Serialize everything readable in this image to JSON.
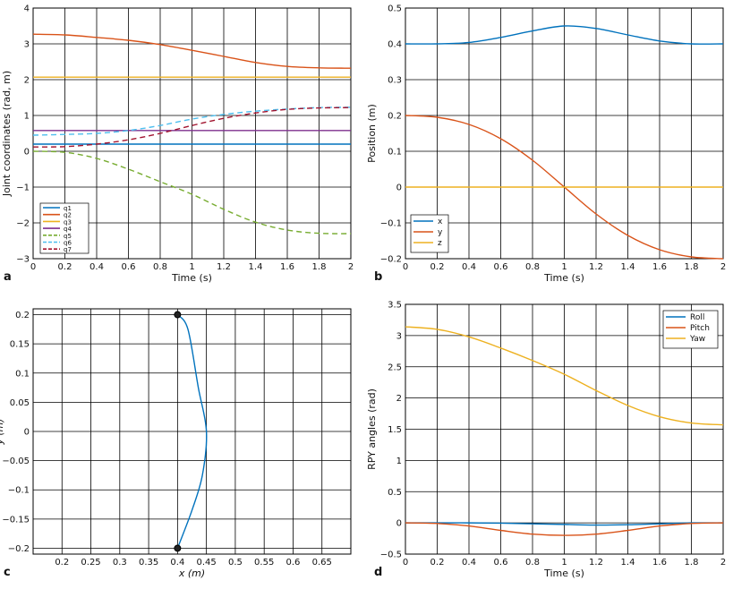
{
  "chart_data": [
    {
      "panel": "a",
      "type": "line",
      "xlabel": "Time (s)",
      "ylabel": "Joint coordinates (rad, m)",
      "xlim": [
        0,
        2
      ],
      "ylim": [
        -3,
        4
      ],
      "xticks": [
        "0",
        "0.2",
        "0.4",
        "0.6",
        "0.8",
        "1",
        "1.2",
        "1.4",
        "1.6",
        "1.8",
        "2"
      ],
      "yticks": [
        "−3",
        "−2",
        "−1",
        "0",
        "1",
        "2",
        "3",
        "4"
      ],
      "legend": "bottom-left",
      "series": [
        {
          "name": "q1",
          "color": "#0072BD",
          "dash": "solid",
          "x": [
            0,
            2
          ],
          "y": [
            0.2,
            0.2
          ]
        },
        {
          "name": "q2",
          "color": "#D95319",
          "dash": "solid",
          "x": [
            0,
            0.2,
            0.4,
            0.6,
            0.8,
            1,
            1.2,
            1.4,
            1.6,
            1.8,
            2
          ],
          "y": [
            3.27,
            3.25,
            3.18,
            3.1,
            2.98,
            2.82,
            2.65,
            2.48,
            2.37,
            2.33,
            2.32
          ]
        },
        {
          "name": "q3",
          "color": "#EDB120",
          "dash": "solid",
          "x": [
            0,
            2
          ],
          "y": [
            2.07,
            2.07
          ]
        },
        {
          "name": "q4",
          "color": "#7E2F8E",
          "dash": "solid",
          "x": [
            0,
            2
          ],
          "y": [
            0.58,
            0.58
          ]
        },
        {
          "name": "q5",
          "color": "#77AC30",
          "dash": "dashed",
          "x": [
            0,
            0.2,
            0.4,
            0.6,
            0.8,
            1,
            1.2,
            1.4,
            1.6,
            1.8,
            2
          ],
          "y": [
            0,
            -0.03,
            -0.2,
            -0.5,
            -0.85,
            -1.2,
            -1.62,
            -1.98,
            -2.2,
            -2.29,
            -2.3
          ]
        },
        {
          "name": "q6",
          "color": "#4DBEEE",
          "dash": "dashed",
          "x": [
            0,
            0.2,
            0.4,
            0.6,
            0.8,
            1,
            1.2,
            1.4,
            1.6,
            1.8,
            2
          ],
          "y": [
            0.45,
            0.47,
            0.5,
            0.58,
            0.72,
            0.9,
            1.03,
            1.12,
            1.18,
            1.22,
            1.23
          ]
        },
        {
          "name": "q7",
          "color": "#A2142F",
          "dash": "dashed",
          "x": [
            0,
            0.2,
            0.4,
            0.6,
            0.8,
            1,
            1.2,
            1.4,
            1.6,
            1.8,
            2
          ],
          "y": [
            0.12,
            0.13,
            0.2,
            0.32,
            0.5,
            0.72,
            0.92,
            1.07,
            1.17,
            1.21,
            1.22
          ]
        }
      ]
    },
    {
      "panel": "b",
      "type": "line",
      "xlabel": "Time (s)",
      "ylabel": "Position (m)",
      "xlim": [
        0,
        2
      ],
      "ylim": [
        -0.2,
        0.5
      ],
      "xticks": [
        "0",
        "0.2",
        "0.4",
        "0.6",
        "0.8",
        "1",
        "1.2",
        "1.4",
        "1.6",
        "1.8",
        "2"
      ],
      "yticks": [
        "−0.2",
        "−0.1",
        "0",
        "0.1",
        "0.2",
        "0.3",
        "0.4",
        "0.5"
      ],
      "legend": "bottom-left",
      "series": [
        {
          "name": "x",
          "color": "#0072BD",
          "x": [
            0,
            0.2,
            0.4,
            0.6,
            0.8,
            1,
            1.2,
            1.4,
            1.6,
            1.8,
            2
          ],
          "y": [
            0.4,
            0.4,
            0.404,
            0.418,
            0.436,
            0.45,
            0.443,
            0.425,
            0.408,
            0.4,
            0.4
          ]
        },
        {
          "name": "y",
          "color": "#D95319",
          "x": [
            0,
            0.2,
            0.4,
            0.6,
            0.8,
            1,
            1.2,
            1.4,
            1.6,
            1.8,
            2
          ],
          "y": [
            0.2,
            0.195,
            0.175,
            0.135,
            0.075,
            0,
            -0.075,
            -0.135,
            -0.175,
            -0.195,
            -0.2
          ]
        },
        {
          "name": "z",
          "color": "#EDB120",
          "x": [
            0,
            2
          ],
          "y": [
            0,
            0
          ]
        }
      ]
    },
    {
      "panel": "c",
      "type": "line",
      "xlabel": "x (m)",
      "ylabel": "y (m)",
      "xlim": [
        0.15,
        0.7
      ],
      "ylim": [
        -0.21,
        0.21
      ],
      "xticks": [
        "0.2",
        "0.25",
        "0.3",
        "0.35",
        "0.4",
        "0.45",
        "0.5",
        "0.55",
        "0.6",
        "0.65"
      ],
      "yticks": [
        "−0.2",
        "−0.15",
        "−0.1",
        "−0.05",
        "0",
        "0.05",
        "0.1",
        "0.15",
        "0.2"
      ],
      "series": [
        {
          "name": "path",
          "color": "#0072BD",
          "x": [
            0.4,
            0.418,
            0.436,
            0.45,
            0.443,
            0.425,
            0.4
          ],
          "y": [
            0.2,
            0.175,
            0.075,
            0,
            -0.075,
            -0.135,
            -0.2
          ]
        }
      ],
      "markers": [
        {
          "x": 0.4,
          "y": 0.2
        },
        {
          "x": 0.4,
          "y": -0.2
        }
      ]
    },
    {
      "panel": "d",
      "type": "line",
      "xlabel": "Time (s)",
      "ylabel": "RPY angles (rad)",
      "xlim": [
        0,
        2
      ],
      "ylim": [
        -0.5,
        3.5
      ],
      "xticks": [
        "0",
        "0.2",
        "0.4",
        "0.6",
        "0.8",
        "1",
        "1.2",
        "1.4",
        "1.6",
        "1.8",
        "2"
      ],
      "yticks": [
        "−0.5",
        "0",
        "0.5",
        "1",
        "1.5",
        "2",
        "2.5",
        "3",
        "3.5"
      ],
      "legend": "top-right",
      "series": [
        {
          "name": "Roll",
          "color": "#0072BD",
          "x": [
            0,
            0.2,
            0.4,
            0.6,
            0.8,
            1,
            1.2,
            1.4,
            1.6,
            1.8,
            2
          ],
          "y": [
            0,
            0,
            0,
            -0.005,
            -0.015,
            -0.025,
            -0.035,
            -0.03,
            -0.015,
            0,
            0
          ]
        },
        {
          "name": "Pitch",
          "color": "#D95319",
          "x": [
            0,
            0.2,
            0.4,
            0.6,
            0.8,
            1,
            1.2,
            1.4,
            1.6,
            1.8,
            2
          ],
          "y": [
            0,
            -0.01,
            -0.05,
            -0.12,
            -0.18,
            -0.2,
            -0.18,
            -0.12,
            -0.05,
            -0.01,
            0
          ]
        },
        {
          "name": "Yaw",
          "color": "#EDB120",
          "x": [
            0,
            0.2,
            0.4,
            0.6,
            0.8,
            1,
            1.2,
            1.4,
            1.6,
            1.8,
            2
          ],
          "y": [
            3.14,
            3.1,
            2.98,
            2.8,
            2.6,
            2.38,
            2.12,
            1.88,
            1.7,
            1.6,
            1.57
          ]
        }
      ]
    }
  ]
}
